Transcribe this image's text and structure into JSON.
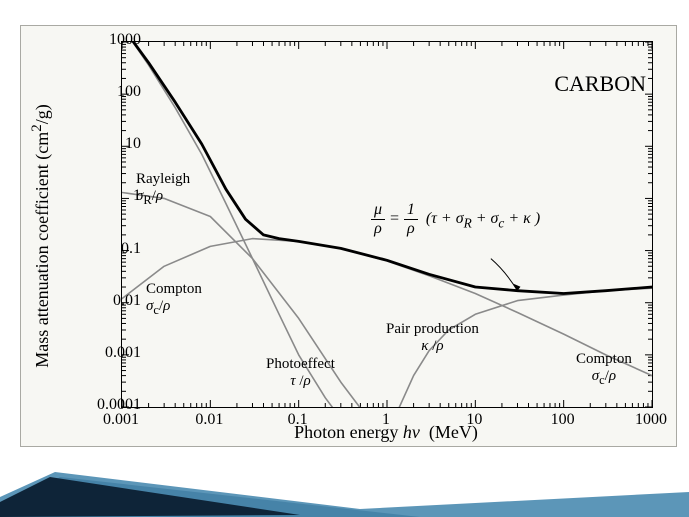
{
  "title": "CARBON",
  "axes": {
    "xlabel_html": "Photon energy <i>hv</i>&nbsp;&nbsp;(MeV)",
    "ylabel_html": "Mass attenuation coefficient (cm<sup>2</sup>/g)",
    "xmin": 0.001,
    "xmax": 1000,
    "ymin": 0.0001,
    "ymax": 1000,
    "xticks": [
      0.001,
      0.01,
      0.1,
      1,
      10,
      100,
      1000
    ],
    "xtick_labels": [
      "0.001",
      "0.01",
      "0.1",
      "1",
      "10",
      "100",
      "1000"
    ],
    "yticks": [
      0.0001,
      0.001,
      0.01,
      0.1,
      1,
      10,
      100,
      1000
    ],
    "ytick_labels": [
      "0.0001",
      "0.001",
      "0.01",
      "0.1",
      "1",
      "10",
      "100",
      "1000"
    ]
  },
  "colors": {
    "frame_bg": "#f7f7f3",
    "frame_border": "#a9a9a3",
    "axis": "#000000",
    "total_curve": "#000000",
    "component_curve": "#8a8a8a",
    "decor1": "#1f3c5c",
    "decor2": "#4a8bb0"
  },
  "line_widths": {
    "total": 2.8,
    "component": 1.6,
    "axis": 1
  },
  "formula_html": "<span style='display:inline-block;vertical-align:middle;text-align:center;'><span style='display:block;border-bottom:1px solid #000;padding:0 3px;'>&mu;</span><span style='display:block;padding:0 3px;'>&rho;</span></span> = <span style='display:inline-block;vertical-align:middle;text-align:center;'><span style='display:block;border-bottom:1px solid #000;padding:0 3px;'>1</span><span style='display:block;padding:0 3px;'>&rho;</span></span> &nbsp;(<i>&tau;</i> + <i>&sigma;</i><sub>R</sub> + <i>&sigma;</i><sub>c</sub> + <i>&kappa;</i> )",
  "curves": {
    "total": {
      "label": "Total μ/ρ",
      "x": [
        0.001,
        0.002,
        0.004,
        0.008,
        0.015,
        0.025,
        0.04,
        0.06,
        0.1,
        0.3,
        1,
        3,
        10,
        30,
        100,
        300,
        1000
      ],
      "y": [
        2000,
        400,
        70,
        11,
        1.5,
        0.4,
        0.2,
        0.17,
        0.15,
        0.11,
        0.065,
        0.035,
        0.02,
        0.017,
        0.015,
        0.017,
        0.02
      ]
    },
    "rayleigh": {
      "label_html": "Rayleigh<br><i>&sigma;</i><sub>R</sub>/<i>&rho;</i>",
      "x": [
        0.001,
        0.003,
        0.01,
        0.03,
        0.1,
        0.3,
        1
      ],
      "y": [
        1.3,
        1.0,
        0.45,
        0.07,
        0.005,
        0.0003,
        2e-05
      ]
    },
    "compton": {
      "label_html": "Compton<br><i>&sigma;</i><sub>c</sub>/<i>&rho;</i>",
      "x": [
        0.001,
        0.003,
        0.01,
        0.03,
        0.1,
        0.3,
        1,
        3,
        10,
        30,
        100,
        300,
        1000
      ],
      "y": [
        0.012,
        0.05,
        0.12,
        0.17,
        0.15,
        0.11,
        0.063,
        0.033,
        0.015,
        0.0065,
        0.0025,
        0.001,
        0.0004
      ]
    },
    "photoeffect": {
      "label_html": "Photoeffect<br><i>&tau;</i> /<i>&rho;</i>",
      "x": [
        0.001,
        0.002,
        0.004,
        0.008,
        0.015,
        0.03,
        0.06,
        0.1,
        0.2,
        0.3
      ],
      "y": [
        2000,
        360,
        55,
        7,
        0.8,
        0.07,
        0.006,
        0.001,
        0.00015,
        6e-05
      ]
    },
    "pair": {
      "label_html": "Pair production<br><i>&kappa;</i> /<i>&rho;</i>",
      "x": [
        1.3,
        2,
        3,
        5,
        10,
        30,
        100,
        300,
        1000
      ],
      "y": [
        8e-05,
        0.0004,
        0.0012,
        0.003,
        0.006,
        0.011,
        0.014,
        0.017,
        0.019
      ]
    }
  },
  "curve_labels": {
    "rayleigh": "Rayleigh",
    "rayleigh_sym": "σ_R/ρ",
    "compton": "Compton",
    "compton_sym": "σ_c/ρ",
    "photoeffect": "Photoeffect",
    "photo_sym": "τ /ρ",
    "pair": "Pair production",
    "pair_sym": "κ /ρ",
    "compton2": "Compton",
    "compton2_sym": "σ_c/ρ"
  }
}
